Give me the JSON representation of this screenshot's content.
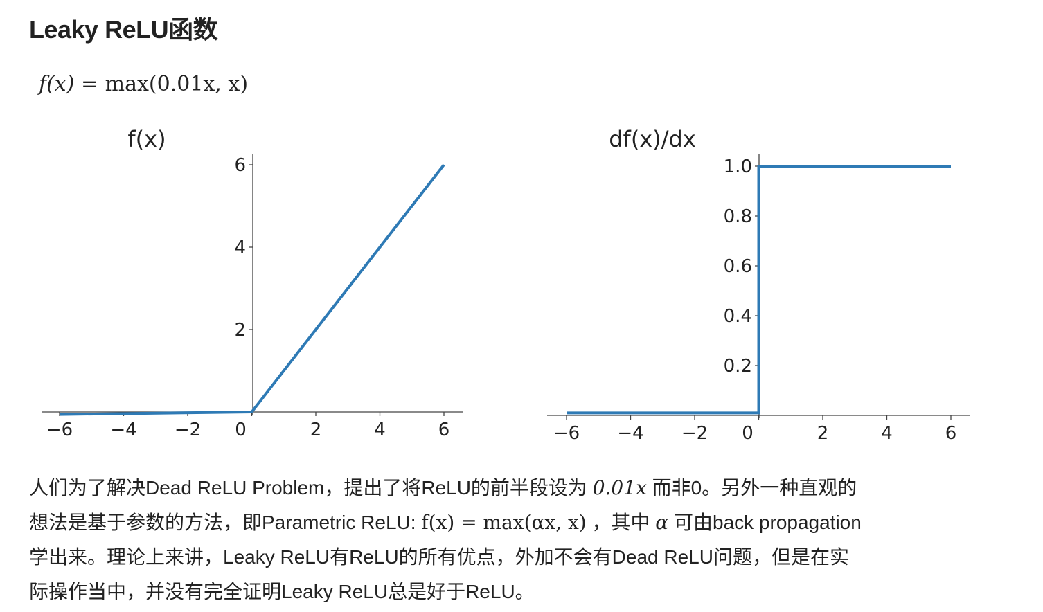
{
  "heading": "Leaky ReLU函数",
  "formula": {
    "lhs": "f(x)",
    "eq": "=",
    "rhs": "max(0.01x, x)"
  },
  "chart_data": [
    {
      "type": "line",
      "title": "f(x)",
      "xlim": [
        -6,
        6
      ],
      "ylim": [
        0,
        6
      ],
      "x_ticks": [
        "−6",
        "−4",
        "−2",
        "0",
        "2",
        "4",
        "6"
      ],
      "y_ticks": [
        "2",
        "4",
        "6"
      ],
      "series": [
        {
          "x": [
            -6,
            0,
            6
          ],
          "y": [
            -0.06,
            0,
            6
          ]
        }
      ],
      "color": "#2e7ab5"
    },
    {
      "type": "line",
      "title": "df(x)/dx",
      "xlim": [
        -6,
        6
      ],
      "ylim": [
        0,
        1.0
      ],
      "x_ticks": [
        "−6",
        "−4",
        "−2",
        "0",
        "2",
        "4",
        "6"
      ],
      "y_ticks": [
        "0.2",
        "0.4",
        "0.6",
        "0.8",
        "1.0"
      ],
      "series": [
        {
          "x": [
            -6,
            0,
            0,
            6
          ],
          "y": [
            0.01,
            0.01,
            1.0,
            1.0
          ]
        }
      ],
      "color": "#2e7ab5"
    }
  ],
  "paragraph": {
    "line1_a": "人们为了解决Dead ReLU Problem，提出了将ReLU的前半段设为 ",
    "line1_math": "0.01x",
    "line1_b": " 而非0。另外一种直观的",
    "line2_a": "想法是基于参数的方法，即Parametric ReLU: ",
    "line2_math": "f(x) = max(αx, x)",
    "line2_b": " ，其中 ",
    "line2_alpha": "α",
    "line2_c": " 可由back propagation",
    "line3": "学出来。理论上来讲，Leaky ReLU有ReLU的所有优点，外加不会有Dead ReLU问题，但是在实",
    "line4": "际操作当中，并没有完全证明Leaky ReLU总是好于ReLU。"
  }
}
